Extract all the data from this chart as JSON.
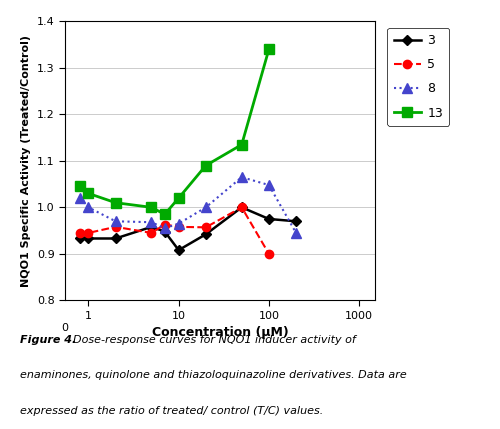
{
  "series": {
    "3": {
      "x": [
        0.8,
        1,
        2,
        5,
        7,
        10,
        20,
        50,
        100,
        200
      ],
      "y": [
        0.933,
        0.933,
        0.933,
        0.958,
        0.948,
        0.908,
        0.942,
        1.0,
        0.975,
        0.97
      ],
      "color": "#000000",
      "linestyle": "-",
      "marker": "D",
      "markersize": 5,
      "linewidth": 1.8,
      "label": "3"
    },
    "5": {
      "x": [
        0.8,
        1,
        2,
        5,
        7,
        10,
        20,
        50,
        100
      ],
      "y": [
        0.945,
        0.945,
        0.958,
        0.945,
        0.963,
        0.958,
        0.957,
        1.0,
        0.9
      ],
      "color": "#ff0000",
      "linestyle": "--",
      "marker": "o",
      "markersize": 6,
      "linewidth": 1.5,
      "label": "5"
    },
    "8": {
      "x": [
        0.8,
        1,
        2,
        5,
        7,
        10,
        20,
        50,
        100,
        200
      ],
      "y": [
        1.02,
        1.0,
        0.97,
        0.968,
        0.955,
        0.965,
        1.0,
        1.065,
        1.048,
        0.945
      ],
      "color": "#4444cc",
      "linestyle": ":",
      "marker": "^",
      "markersize": 7,
      "linewidth": 1.5,
      "label": "8"
    },
    "13": {
      "x": [
        0.8,
        1,
        2,
        5,
        7,
        10,
        20,
        50,
        100
      ],
      "y": [
        1.045,
        1.03,
        1.01,
        1.0,
        0.985,
        1.02,
        1.09,
        1.135,
        1.34
      ],
      "color": "#00aa00",
      "linestyle": "-",
      "marker": "s",
      "markersize": 7,
      "linewidth": 2.0,
      "label": "13"
    }
  },
  "xlabel": "Concentration (μM)",
  "ylabel": "NQO1 Specific Activity (Treated/Control)",
  "ylim": [
    0.8,
    1.4
  ],
  "yticks": [
    0.8,
    0.9,
    1.0,
    1.1,
    1.2,
    1.3,
    1.4
  ],
  "xlim_left": 0.55,
  "xlim_right": 1500,
  "xticks": [
    1,
    10,
    100,
    1000
  ],
  "xtick_labels": [
    "1",
    "10",
    "100",
    "1000"
  ],
  "legend_order": [
    "3",
    "5",
    "8",
    "13"
  ],
  "bg_color": "#ffffff",
  "grid_color": "#cccccc",
  "caption_bold": "Figure 4.",
  "caption_rest": "  Dose-response curves for NQO1 inducer activity of enaminones, quinolone and thiazoloquinazoline derivatives. Data are expressed as the ratio of treated/ control (T/C) values."
}
